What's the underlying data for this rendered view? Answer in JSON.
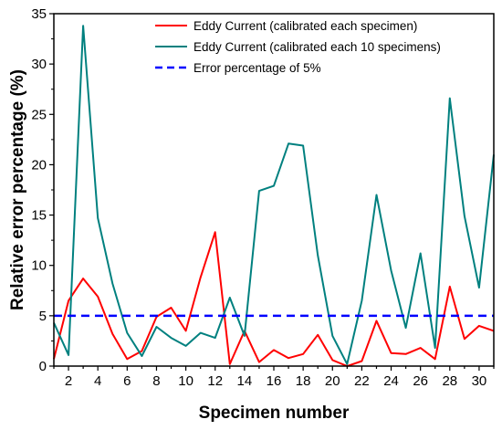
{
  "chart_data": {
    "type": "line",
    "xlabel": "Specimen number",
    "ylabel": "Relative error percentage (%)",
    "x": [
      1,
      2,
      3,
      4,
      5,
      6,
      7,
      8,
      9,
      10,
      11,
      12,
      13,
      14,
      15,
      16,
      17,
      18,
      19,
      20,
      21,
      22,
      23,
      24,
      25,
      26,
      27,
      28,
      29,
      30,
      31
    ],
    "xlim": [
      1,
      31
    ],
    "ylim": [
      0,
      35
    ],
    "xticks": [
      "2",
      "4",
      "6",
      "8",
      "10",
      "12",
      "14",
      "16",
      "18",
      "20",
      "22",
      "24",
      "26",
      "28",
      "30"
    ],
    "xtick_values": [
      2,
      4,
      6,
      8,
      10,
      12,
      14,
      16,
      18,
      20,
      22,
      24,
      26,
      28,
      30
    ],
    "yticks": [
      "0",
      "5",
      "10",
      "15",
      "20",
      "25",
      "30",
      "35"
    ],
    "ytick_values": [
      0,
      5,
      10,
      15,
      20,
      25,
      30,
      35
    ],
    "legend_position": "top-right",
    "series": [
      {
        "name": "Eddy Current (calibrated each specimen)",
        "color": "#ff0000",
        "style": "solid",
        "values": [
          0.7,
          6.5,
          8.7,
          6.9,
          3.2,
          0.7,
          1.5,
          4.9,
          5.8,
          3.5,
          8.8,
          13.3,
          0.2,
          3.5,
          0.4,
          1.6,
          0.8,
          1.2,
          3.1,
          0.6,
          0.0,
          0.5,
          4.5,
          1.3,
          1.2,
          1.8,
          0.7,
          7.9,
          2.7,
          4.0,
          3.5
        ]
      },
      {
        "name": "Eddy Current (calibrated each 10 specimens)",
        "color": "#00807f",
        "style": "solid",
        "values": [
          4.3,
          1.1,
          33.8,
          14.7,
          8.2,
          3.3,
          1.0,
          3.9,
          2.8,
          2.0,
          3.3,
          2.8,
          6.8,
          3.0,
          17.4,
          17.9,
          22.1,
          21.9,
          11.0,
          3.0,
          0.2,
          6.5,
          17.0,
          9.5,
          3.8,
          11.2,
          1.8,
          26.6,
          14.9,
          7.8,
          21.0
        ]
      },
      {
        "name": "Error percentage of 5%",
        "color": "#0000ff",
        "style": "dashed",
        "values": [
          5,
          5,
          5,
          5,
          5,
          5,
          5,
          5,
          5,
          5,
          5,
          5,
          5,
          5,
          5,
          5,
          5,
          5,
          5,
          5,
          5,
          5,
          5,
          5,
          5,
          5,
          5,
          5,
          5,
          5,
          5
        ]
      }
    ]
  }
}
